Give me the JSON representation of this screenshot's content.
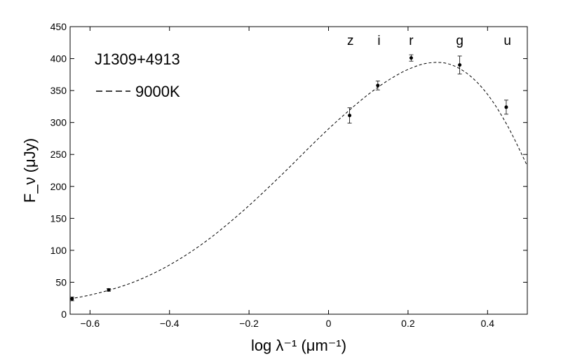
{
  "chart_data": {
    "type": "scatter",
    "title": "",
    "xlabel": "log λ⁻¹ (μm⁻¹)",
    "ylabel": "F_ν (μJy)",
    "xlim": [
      -0.65,
      0.5
    ],
    "ylim": [
      0,
      450
    ],
    "grid": false,
    "legend": {
      "title": "J1309+4913",
      "model_label": "9000K",
      "placement": "top-left"
    },
    "x_ticks": [
      -0.6,
      -0.4,
      -0.2,
      0,
      0.2,
      0.4
    ],
    "x_tick_labels": [
      "−0.6",
      "−0.4",
      "−0.2",
      "0",
      "0.2",
      "0.4"
    ],
    "y_ticks": [
      0,
      50,
      100,
      150,
      200,
      250,
      300,
      350,
      400,
      450
    ],
    "y_tick_labels": [
      "0",
      "50",
      "100",
      "150",
      "200",
      "250",
      "300",
      "350",
      "400",
      "450"
    ],
    "band_labels": [
      {
        "label": "z",
        "x": 0.055
      },
      {
        "label": "i",
        "x": 0.127
      },
      {
        "label": "r",
        "x": 0.208
      },
      {
        "label": "g",
        "x": 0.33
      },
      {
        "label": "u",
        "x": 0.45
      }
    ],
    "series": [
      {
        "type": "scatter_errorbar",
        "points": [
          {
            "x": -0.645,
            "y": 24,
            "err": 3
          },
          {
            "x": -0.553,
            "y": 38,
            "err": 2
          },
          {
            "x": 0.053,
            "y": 311,
            "err": 12
          },
          {
            "x": 0.124,
            "y": 358,
            "err": 7
          },
          {
            "x": 0.208,
            "y": 401,
            "err": 5
          },
          {
            "x": 0.33,
            "y": 390,
            "err": 14
          },
          {
            "x": 0.447,
            "y": 324,
            "err": 11
          }
        ]
      },
      {
        "type": "line",
        "style": "dashed",
        "x": [
          -0.65,
          -0.6,
          -0.55,
          -0.5,
          -0.45,
          -0.4,
          -0.35,
          -0.3,
          -0.25,
          -0.2,
          -0.15,
          -0.1,
          -0.05,
          0.0,
          0.05,
          0.1,
          0.15,
          0.2,
          0.25,
          0.3,
          0.35,
          0.4,
          0.45,
          0.5
        ],
        "y": [
          24,
          30,
          38,
          48,
          61,
          77,
          96,
          118,
          143,
          170,
          199,
          229,
          260,
          290,
          318,
          344,
          366,
          383,
          393,
          392,
          376,
          344,
          295,
          232
        ]
      }
    ]
  }
}
